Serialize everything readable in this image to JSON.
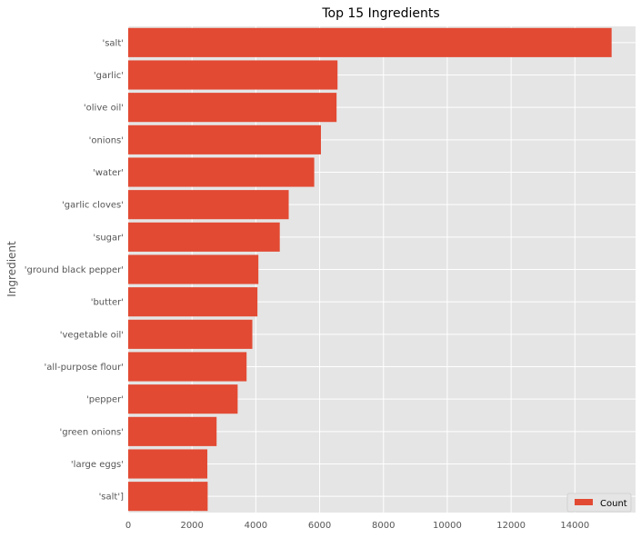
{
  "chart_data": {
    "type": "bar",
    "orientation": "horizontal",
    "title": "Top 15 Ingredients",
    "xlabel": "",
    "ylabel": "Ingredient",
    "categories": [
      "'salt'",
      "'garlic'",
      "'olive oil'",
      "'onions'",
      "'water'",
      "'garlic cloves'",
      "'sugar'",
      "'ground black pepper'",
      "'butter'",
      "'vegetable oil'",
      "'all-purpose flour'",
      "'pepper'",
      "'green onions'",
      "'large eggs'",
      "'salt']"
    ],
    "series": [
      {
        "name": "Count",
        "values": [
          15150,
          6560,
          6530,
          6040,
          5830,
          5030,
          4750,
          4080,
          4050,
          3890,
          3710,
          3430,
          2770,
          2480,
          2490
        ]
      }
    ],
    "xticks": [
      0,
      2000,
      4000,
      6000,
      8000,
      10000,
      12000,
      14000
    ],
    "xlim": [
      0,
      15900
    ],
    "grid": true,
    "legend_position": "lower right",
    "colors": {
      "bar": "#E24A33",
      "background": "#E5E5E5",
      "grid": "#FFFFFF"
    }
  }
}
